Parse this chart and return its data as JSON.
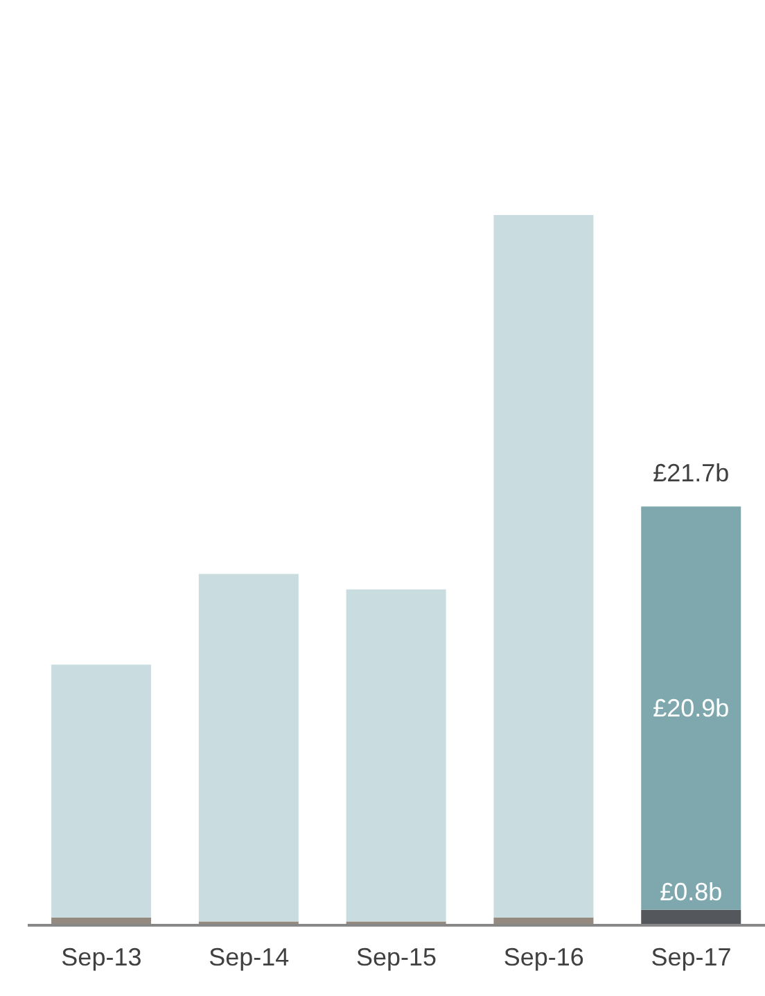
{
  "chart_data": {
    "type": "bar",
    "stacked": true,
    "categories": [
      "Sep-13",
      "Sep-14",
      "Sep-15",
      "Sep-16",
      "Sep-17"
    ],
    "series": [
      {
        "colors": [
          "#958a80",
          "#958a80",
          "#958a80",
          "#958a80",
          "#54575c"
        ],
        "values": [
          0.4,
          0.2,
          0.2,
          0.4,
          0.8
        ],
        "value_labels": [
          null,
          null,
          null,
          null,
          "£0.8b"
        ]
      },
      {
        "colors": [
          "#c9dde0",
          "#c9dde0",
          "#c9dde0",
          "#c9dde0",
          "#7ea8ad"
        ],
        "values": [
          13.1,
          18.0,
          17.2,
          36.4,
          20.9
        ],
        "value_labels": [
          null,
          null,
          null,
          null,
          "£20.9b"
        ]
      }
    ],
    "totals": [
      null,
      null,
      null,
      null,
      "£21.7b"
    ]
  }
}
